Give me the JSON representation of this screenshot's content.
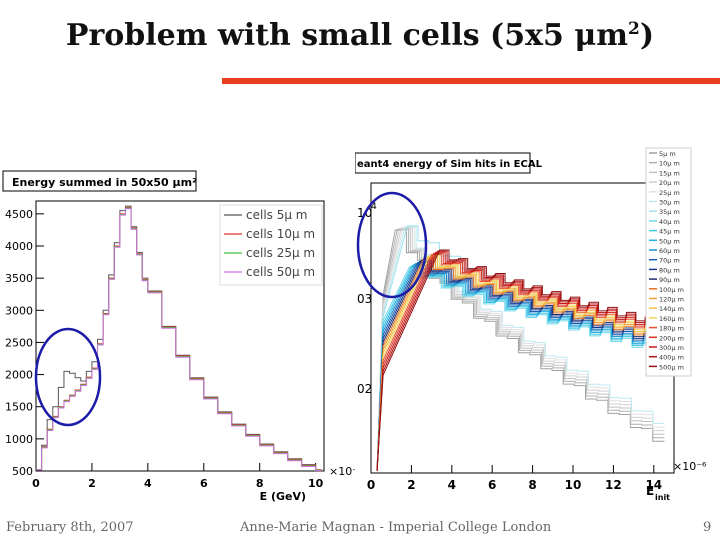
{
  "slide": {
    "title": "Problem with small cells (5x5 μm",
    "title_superscript": "2",
    "title_close": ")",
    "accent_color": "#e8401c",
    "footer_date": "February 8th, 2007",
    "footer_author": "Anne-Marie Magnan - Imperial College London",
    "page_number": "9"
  },
  "chart_data": [
    {
      "type": "line",
      "title": "Energy summed in 50x50 μm²",
      "xlabel": "E (GeV)",
      "ylabel": "",
      "x_exponent": "×10⁻⁶",
      "xlim": [
        0,
        10.3
      ],
      "ylim": [
        500,
        4700
      ],
      "xticks": [
        0,
        2,
        4,
        6,
        8,
        10
      ],
      "yticks": [
        500,
        1000,
        1500,
        2000,
        2500,
        3000,
        3500,
        4000,
        4500
      ],
      "legend_position": "top-right",
      "x": [
        0,
        0.2,
        0.4,
        0.6,
        0.8,
        1.0,
        1.2,
        1.4,
        1.6,
        1.8,
        2.0,
        2.2,
        2.4,
        2.6,
        2.8,
        3.0,
        3.2,
        3.4,
        3.6,
        3.8,
        4.0,
        4.5,
        5.0,
        5.5,
        6.0,
        6.5,
        7.0,
        7.5,
        8.0,
        8.5,
        9.0,
        9.5,
        10.0,
        10.2
      ],
      "series": [
        {
          "name": "cells 5μ m",
          "color": "#555555",
          "values": [
            520,
            900,
            1300,
            1500,
            1800,
            2050,
            2020,
            1950,
            1900,
            2050,
            2200,
            2550,
            3000,
            3550,
            4050,
            4550,
            4620,
            4300,
            3900,
            3500,
            3300,
            2750,
            2300,
            1950,
            1650,
            1420,
            1230,
            1070,
            920,
            800,
            690,
            600,
            520,
            500
          ]
        },
        {
          "name": "cells 10μ m",
          "color": "#e03030",
          "values": [
            520,
            880,
            1150,
            1350,
            1500,
            1600,
            1680,
            1760,
            1850,
            1960,
            2100,
            2480,
            2950,
            3500,
            4000,
            4500,
            4600,
            4280,
            3880,
            3480,
            3290,
            2740,
            2290,
            1940,
            1640,
            1410,
            1220,
            1060,
            910,
            790,
            680,
            590,
            515,
            500
          ]
        },
        {
          "name": "cells 25μ m",
          "color": "#40c040",
          "values": [
            520,
            870,
            1140,
            1340,
            1490,
            1590,
            1670,
            1750,
            1840,
            1950,
            2090,
            2470,
            2940,
            3490,
            3990,
            4490,
            4590,
            4270,
            3870,
            3470,
            3280,
            2730,
            2280,
            1930,
            1630,
            1400,
            1210,
            1050,
            900,
            780,
            670,
            580,
            510,
            500
          ]
        },
        {
          "name": "cells 50μ m",
          "color": "#d070e0",
          "values": [
            520,
            860,
            1130,
            1330,
            1480,
            1580,
            1660,
            1740,
            1830,
            1940,
            2080,
            2460,
            2930,
            3480,
            3980,
            4480,
            4580,
            4260,
            3860,
            3460,
            3270,
            2720,
            2270,
            1920,
            1620,
            1390,
            1200,
            1040,
            890,
            770,
            660,
            570,
            505,
            500
          ]
        }
      ]
    },
    {
      "type": "line",
      "title": "eant4 energy of Sim hits in ECAL",
      "xlabel": "E",
      "xlabel_subscript": "init",
      "ylabel": "",
      "x_exponent": "×10⁻⁶",
      "xlim": [
        0,
        15
      ],
      "xticks": [
        0,
        2,
        4,
        6,
        8,
        10,
        12,
        14
      ],
      "ytick_labels": [
        "10",
        "4",
        "03",
        "02"
      ],
      "y_log": true,
      "legend_position": "right",
      "legend": [
        "5μ m",
        "10μ m",
        "15μ m",
        "20μ m",
        "25μ m",
        "30μ m",
        "35μ m",
        "40μ m",
        "45μ m",
        "50μ m",
        "60μ m",
        "70μ m",
        "80μ m",
        "90μ m",
        "100μ m",
        "120μ m",
        "140μ m",
        "160μ m",
        "180μ m",
        "200μ m",
        "300μ m",
        "400μ m",
        "500μ m"
      ],
      "legend_colors": [
        "#a0a0a0",
        "#b0b0b0",
        "#c0c0c0",
        "#d0d0d0",
        "#e0e0e0",
        "#bfe8f0",
        "#9fe0ec",
        "#6fd6ea",
        "#3cc8e4",
        "#20b0e0",
        "#1890d0",
        "#1a60b0",
        "#1a3a90",
        "#203070",
        "#e07020",
        "#f0a030",
        "#f0c040",
        "#f0d860",
        "#e85030",
        "#d83020",
        "#c81818",
        "#b01010",
        "#901010"
      ]
    }
  ]
}
